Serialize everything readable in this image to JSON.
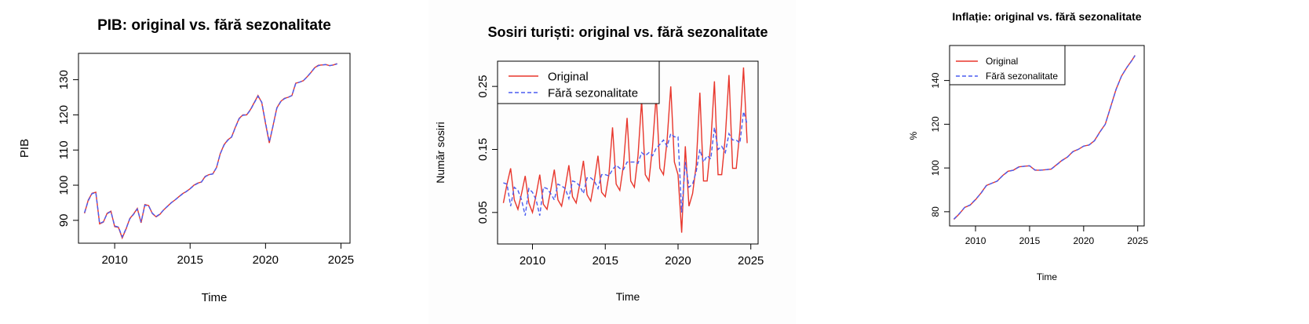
{
  "chart_data": [
    {
      "type": "line",
      "title": "PIB: original vs. fără sezonalitate",
      "xlabel": "Time",
      "ylabel": "PIB",
      "xlim": [
        2007.6,
        2025.6
      ],
      "ylim": [
        83.5,
        137.5
      ],
      "x_ticks": [
        2010,
        2015,
        2020,
        2025
      ],
      "y_ticks": [
        90,
        100,
        110,
        120,
        130
      ],
      "legend": null,
      "x": [
        2008.0,
        2008.25,
        2008.5,
        2008.75,
        2009.0,
        2009.25,
        2009.5,
        2009.75,
        2010.0,
        2010.25,
        2010.5,
        2010.75,
        2011.0,
        2011.25,
        2011.5,
        2011.75,
        2012.0,
        2012.25,
        2012.5,
        2012.75,
        2013.0,
        2013.25,
        2013.5,
        2013.75,
        2014.0,
        2014.25,
        2014.5,
        2014.75,
        2015.0,
        2015.25,
        2015.5,
        2015.75,
        2016.0,
        2016.25,
        2016.5,
        2016.75,
        2017.0,
        2017.25,
        2017.5,
        2017.75,
        2018.0,
        2018.25,
        2018.5,
        2018.75,
        2019.0,
        2019.25,
        2019.5,
        2019.75,
        2020.0,
        2020.25,
        2020.5,
        2020.75,
        2021.0,
        2021.25,
        2021.5,
        2021.75,
        2022.0,
        2022.25,
        2022.5,
        2022.75,
        2023.0,
        2023.25,
        2023.5,
        2023.75,
        2024.0,
        2024.25,
        2024.5,
        2024.75
      ],
      "series": [
        {
          "name": "original",
          "color": "#e8362c",
          "dash": "solid",
          "values": [
            92.0,
            95.8,
            97.7,
            98.0,
            89.0,
            89.5,
            92.0,
            92.6,
            88.2,
            88.0,
            85.0,
            87.5,
            90.5,
            91.8,
            93.4,
            89.3,
            94.5,
            94.2,
            91.9,
            91.0,
            91.7,
            93.0,
            94.0,
            95.0,
            95.8,
            96.7,
            97.6,
            98.2,
            99.0,
            100.0,
            100.6,
            100.9,
            102.5,
            103.0,
            103.2,
            105.0,
            109.0,
            111.5,
            112.9,
            113.7,
            116.5,
            119.0,
            120.0,
            120.0,
            121.5,
            123.5,
            125.5,
            123.5,
            117.5,
            112.0,
            117.0,
            122.0,
            123.8,
            124.7,
            125.0,
            125.5,
            129.0,
            129.3,
            129.7,
            130.8,
            132.0,
            133.4,
            134.1,
            134.2,
            134.3,
            134.0,
            134.2,
            134.6
          ]
        },
        {
          "name": "fără sezonalitate",
          "color": "#4a5cf0",
          "dash": "dashed",
          "values": [
            92.2,
            95.6,
            97.6,
            97.9,
            89.1,
            89.6,
            91.9,
            92.5,
            88.4,
            88.1,
            85.3,
            87.6,
            90.4,
            91.7,
            93.2,
            89.5,
            94.3,
            94.1,
            92.0,
            91.1,
            91.8,
            93.0,
            94.0,
            95.0,
            95.8,
            96.7,
            97.5,
            98.2,
            99.0,
            99.9,
            100.5,
            100.9,
            102.4,
            103.0,
            103.2,
            105.0,
            108.9,
            111.4,
            112.8,
            113.7,
            116.4,
            118.9,
            119.9,
            120.0,
            121.4,
            123.4,
            125.3,
            123.6,
            117.8,
            112.3,
            116.9,
            121.9,
            123.7,
            124.6,
            125.0,
            125.5,
            128.9,
            129.3,
            129.7,
            130.8,
            132.0,
            133.3,
            134.0,
            134.2,
            134.3,
            134.0,
            134.2,
            134.5
          ]
        }
      ]
    },
    {
      "type": "line",
      "title": "Sosiri turiști: original vs. fără sezonalitate",
      "xlabel": "Time",
      "ylabel": "Număr sosiri",
      "xlim": [
        2007.6,
        2025.5
      ],
      "ylim": [
        0.0,
        0.29
      ],
      "x_ticks": [
        2010,
        2015,
        2020,
        2025
      ],
      "y_ticks": [
        0.05,
        0.15,
        0.25
      ],
      "legend": {
        "position": "top-left",
        "entries": [
          "Original",
          "Fără sezonalitate"
        ]
      },
      "x": [
        2008.0,
        2008.25,
        2008.5,
        2008.75,
        2009.0,
        2009.25,
        2009.5,
        2009.75,
        2010.0,
        2010.25,
        2010.5,
        2010.75,
        2011.0,
        2011.25,
        2011.5,
        2011.75,
        2012.0,
        2012.25,
        2012.5,
        2012.75,
        2013.0,
        2013.25,
        2013.5,
        2013.75,
        2014.0,
        2014.25,
        2014.5,
        2014.75,
        2015.0,
        2015.25,
        2015.5,
        2015.75,
        2016.0,
        2016.25,
        2016.5,
        2016.75,
        2017.0,
        2017.25,
        2017.5,
        2017.75,
        2018.0,
        2018.25,
        2018.5,
        2018.75,
        2019.0,
        2019.25,
        2019.5,
        2019.75,
        2020.0,
        2020.25,
        2020.5,
        2020.75,
        2021.0,
        2021.25,
        2021.5,
        2021.75,
        2022.0,
        2022.25,
        2022.5,
        2022.75,
        2023.0,
        2023.25,
        2023.5,
        2023.75,
        2024.0,
        2024.25,
        2024.5,
        2024.75
      ],
      "series": [
        {
          "name": "Original",
          "color": "#e8362c",
          "dash": "solid",
          "values": [
            0.065,
            0.095,
            0.12,
            0.07,
            0.055,
            0.08,
            0.108,
            0.065,
            0.05,
            0.078,
            0.11,
            0.063,
            0.055,
            0.085,
            0.118,
            0.07,
            0.06,
            0.09,
            0.125,
            0.075,
            0.065,
            0.095,
            0.132,
            0.078,
            0.068,
            0.1,
            0.14,
            0.082,
            0.075,
            0.11,
            0.185,
            0.095,
            0.085,
            0.125,
            0.2,
            0.1,
            0.09,
            0.14,
            0.228,
            0.11,
            0.1,
            0.155,
            0.236,
            0.12,
            0.11,
            0.165,
            0.25,
            0.13,
            0.11,
            0.018,
            0.155,
            0.06,
            0.08,
            0.125,
            0.24,
            0.1,
            0.1,
            0.16,
            0.258,
            0.11,
            0.11,
            0.17,
            0.268,
            0.12,
            0.12,
            0.18,
            0.28,
            0.16
          ]
        },
        {
          "name": "Fără sezonalitate",
          "color": "#4a5cf0",
          "dash": "dashed",
          "values": [
            0.097,
            0.095,
            0.06,
            0.09,
            0.085,
            0.07,
            0.045,
            0.088,
            0.082,
            0.07,
            0.045,
            0.09,
            0.088,
            0.08,
            0.07,
            0.095,
            0.092,
            0.088,
            0.072,
            0.1,
            0.098,
            0.092,
            0.08,
            0.105,
            0.105,
            0.1,
            0.088,
            0.11,
            0.11,
            0.108,
            0.118,
            0.125,
            0.12,
            0.118,
            0.13,
            0.13,
            0.13,
            0.128,
            0.145,
            0.14,
            0.145,
            0.14,
            0.152,
            0.158,
            0.165,
            0.155,
            0.175,
            0.17,
            0.17,
            0.05,
            0.13,
            0.09,
            0.095,
            0.115,
            0.15,
            0.13,
            0.14,
            0.135,
            0.185,
            0.15,
            0.155,
            0.145,
            0.175,
            0.165,
            0.165,
            0.16,
            0.21,
            0.19
          ]
        }
      ]
    },
    {
      "type": "line",
      "title": "Inflație: original vs. fără sezonalitate",
      "xlabel": "Time",
      "ylabel": "%",
      "xlim": [
        2007.6,
        2025.6
      ],
      "ylim": [
        73.5,
        156.0
      ],
      "x_ticks": [
        2010,
        2015,
        2020,
        2025
      ],
      "y_ticks": [
        80,
        100,
        120,
        140
      ],
      "legend": {
        "position": "top-left",
        "entries": [
          "Original",
          "Fără sezonalitate"
        ]
      },
      "x": [
        2008.0,
        2008.5,
        2009.0,
        2009.5,
        2010.0,
        2010.5,
        2011.0,
        2011.5,
        2012.0,
        2012.5,
        2013.0,
        2013.5,
        2014.0,
        2014.5,
        2015.0,
        2015.5,
        2016.0,
        2016.5,
        2017.0,
        2017.5,
        2018.0,
        2018.5,
        2019.0,
        2019.5,
        2020.0,
        2020.5,
        2021.0,
        2021.5,
        2022.0,
        2022.5,
        2023.0,
        2023.5,
        2024.0,
        2024.5,
        2024.75
      ],
      "series": [
        {
          "name": "Original",
          "color": "#e8362c",
          "dash": "solid",
          "values": [
            76.5,
            79.0,
            82.0,
            83.0,
            85.5,
            88.5,
            92.0,
            93.0,
            94.0,
            96.5,
            98.5,
            99.0,
            100.5,
            100.8,
            101.0,
            99.0,
            99.0,
            99.2,
            99.5,
            101.5,
            103.5,
            105.0,
            107.5,
            108.5,
            110.0,
            110.5,
            112.5,
            116.5,
            120.0,
            128.0,
            136.0,
            142.0,
            146.0,
            149.5,
            151.5
          ]
        },
        {
          "name": "Fără sezonalitate",
          "color": "#4a5cf0",
          "dash": "dashed",
          "values": [
            76.7,
            79.1,
            82.0,
            83.1,
            85.6,
            88.4,
            91.9,
            93.0,
            94.0,
            96.4,
            98.4,
            99.0,
            100.4,
            100.8,
            101.0,
            99.1,
            99.0,
            99.2,
            99.5,
            101.4,
            103.4,
            105.0,
            107.4,
            108.5,
            110.0,
            110.5,
            112.4,
            116.4,
            120.0,
            127.9,
            135.9,
            142.0,
            146.0,
            149.4,
            151.4
          ]
        }
      ]
    }
  ]
}
